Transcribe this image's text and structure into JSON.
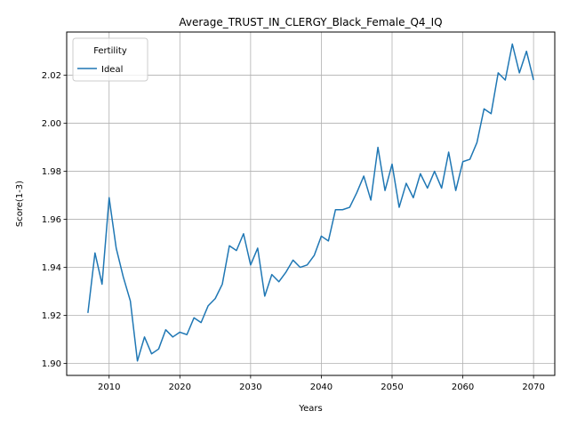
{
  "chart_data": {
    "type": "line",
    "title": "Average_TRUST_IN_CLERGY_Black_Female_Q4_IQ",
    "xlabel": "Years",
    "ylabel": "Score(1-3)",
    "xlim": [
      2004,
      2073
    ],
    "ylim": [
      1.895,
      2.038
    ],
    "xticks": [
      2010,
      2020,
      2030,
      2040,
      2050,
      2060,
      2070
    ],
    "yticks": [
      1.9,
      1.92,
      1.94,
      1.96,
      1.98,
      2.0,
      2.02
    ],
    "ytick_labels": [
      "1.90",
      "1.92",
      "1.94",
      "1.96",
      "1.98",
      "2.00",
      "2.02"
    ],
    "grid": true,
    "legend": {
      "title": "Fertility",
      "placement": "top-left"
    },
    "series": [
      {
        "name": "Ideal",
        "color": "#1f77b4",
        "x": [
          2007,
          2008,
          2009,
          2010,
          2011,
          2012,
          2013,
          2014,
          2015,
          2016,
          2017,
          2018,
          2019,
          2020,
          2021,
          2022,
          2023,
          2024,
          2025,
          2026,
          2027,
          2028,
          2029,
          2030,
          2031,
          2032,
          2033,
          2034,
          2035,
          2036,
          2037,
          2038,
          2039,
          2040,
          2041,
          2042,
          2043,
          2044,
          2045,
          2046,
          2047,
          2048,
          2049,
          2050,
          2051,
          2052,
          2053,
          2054,
          2055,
          2056,
          2057,
          2058,
          2059,
          2060,
          2061,
          2062,
          2063,
          2064,
          2065,
          2066,
          2067,
          2068,
          2069,
          2070
        ],
        "y": [
          1.921,
          1.946,
          1.933,
          1.969,
          1.948,
          1.936,
          1.926,
          1.901,
          1.911,
          1.904,
          1.906,
          1.914,
          1.911,
          1.913,
          1.912,
          1.919,
          1.917,
          1.924,
          1.927,
          1.933,
          1.949,
          1.947,
          1.954,
          1.941,
          1.948,
          1.928,
          1.937,
          1.934,
          1.938,
          1.943,
          1.94,
          1.941,
          1.945,
          1.953,
          1.951,
          1.964,
          1.964,
          1.965,
          1.971,
          1.978,
          1.968,
          1.99,
          1.972,
          1.983,
          1.965,
          1.975,
          1.969,
          1.979,
          1.973,
          1.98,
          1.973,
          1.988,
          1.972,
          1.984,
          1.985,
          1.992,
          2.006,
          2.004,
          2.021,
          2.018,
          2.033,
          2.021,
          2.03,
          2.018
        ]
      }
    ]
  }
}
